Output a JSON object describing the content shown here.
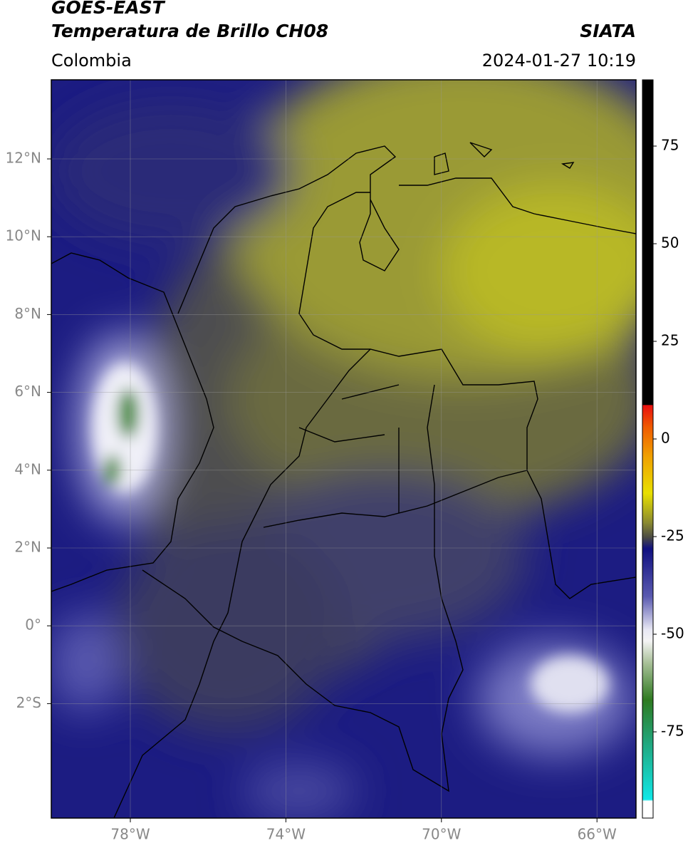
{
  "header": {
    "title": "GOES-EAST",
    "subtitle": "Temperatura de Brillo CH08",
    "source": "SIATA",
    "region": "Colombia",
    "datetime": "2024-01-27 10:19"
  },
  "map": {
    "lat_ticks": [
      "12°N",
      "10°N",
      "8°N",
      "6°N",
      "4°N",
      "2°N",
      "0°",
      "2°S"
    ],
    "lon_ticks": [
      "78°W",
      "74°W",
      "70°W",
      "66°W"
    ]
  },
  "colorbar": {
    "ticks": [
      75,
      50,
      25,
      0,
      -25,
      -50,
      -75
    ]
  }
}
